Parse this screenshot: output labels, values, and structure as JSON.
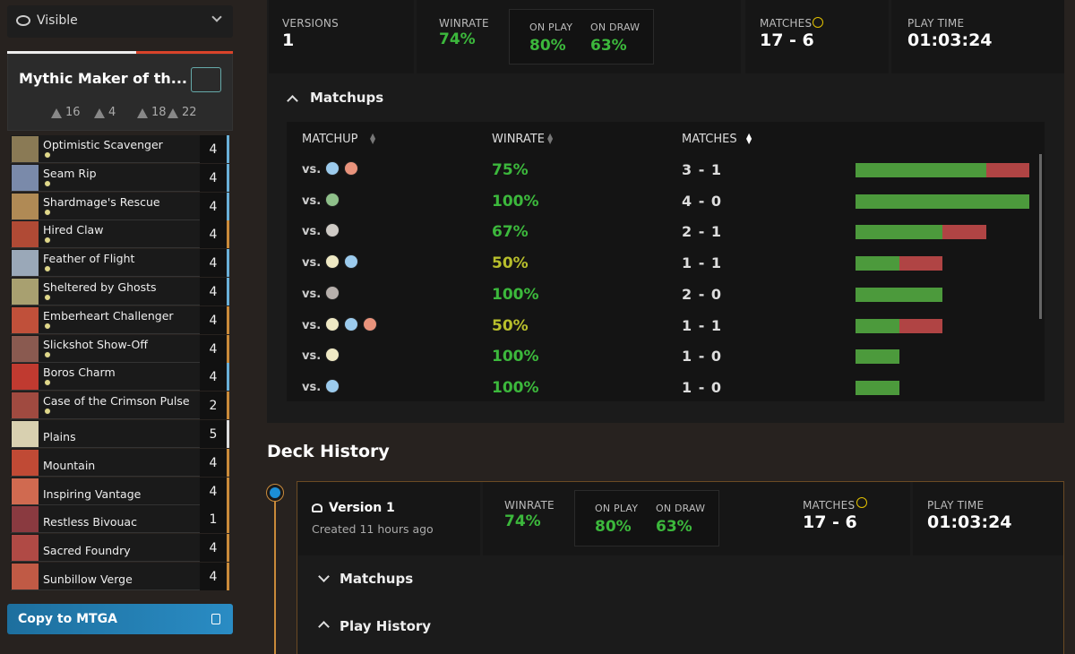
{
  "sidebar": {
    "visibility": "Visible",
    "deck_name": "Mythic Maker of th...",
    "type_counts": [
      16,
      4,
      18,
      22
    ],
    "cards": [
      {
        "name": "Optimistic Scavenger",
        "count": 4
      },
      {
        "name": "Seam Rip",
        "count": 4
      },
      {
        "name": "Shardmage's Rescue",
        "count": 4
      },
      {
        "name": "Hired Claw",
        "count": 4
      },
      {
        "name": "Feather of Flight",
        "count": 4
      },
      {
        "name": "Sheltered by Ghosts",
        "count": 4
      },
      {
        "name": "Emberheart Challenger",
        "count": 4
      },
      {
        "name": "Slickshot Show-Off",
        "count": 4
      },
      {
        "name": "Boros Charm",
        "count": 4
      },
      {
        "name": "Case of the Crimson Pulse",
        "count": 2
      },
      {
        "name": "Plains",
        "count": 5
      },
      {
        "name": "Mountain",
        "count": 4
      },
      {
        "name": "Inspiring Vantage",
        "count": 4
      },
      {
        "name": "Restless Bivouac",
        "count": 1
      },
      {
        "name": "Sacred Foundry",
        "count": 4
      },
      {
        "name": "Sunbillow Verge",
        "count": 4
      }
    ],
    "copy_button": "Copy to MTGA"
  },
  "summary": {
    "versions_label": "VERSIONS",
    "versions": 1,
    "winrate_label": "WINRATE",
    "winrate": "74%",
    "on_play_label": "ON PLAY",
    "on_play": "80%",
    "on_draw_label": "ON DRAW",
    "on_draw": "63%",
    "matches_label": "MATCHES",
    "matches": "17 - 6",
    "play_time_label": "PLAY TIME",
    "play_time": "01:03:24"
  },
  "matchups": {
    "title": "Matchups",
    "headers": [
      "MATCHUP",
      "WINRATE",
      "MATCHES"
    ],
    "rows": [
      {
        "prefix": "vs.",
        "winrate": "75%",
        "record": "3 - 1"
      },
      {
        "prefix": "vs.",
        "winrate": "100%",
        "record": "4 - 0"
      },
      {
        "prefix": "vs.",
        "winrate": "67%",
        "record": "2 - 1"
      },
      {
        "prefix": "vs.",
        "winrate": "50%",
        "record": "1 - 1"
      },
      {
        "prefix": "vs.",
        "winrate": "100%",
        "record": "2 - 0"
      },
      {
        "prefix": "vs.",
        "winrate": "50%",
        "record": "1 - 1"
      },
      {
        "prefix": "vs.",
        "winrate": "100%",
        "record": "1 - 0"
      },
      {
        "prefix": "vs.",
        "winrate": "100%",
        "record": "1 - 0"
      }
    ]
  },
  "history": {
    "title": "Deck History",
    "version": "Version 1",
    "created": "Created 11 hours ago",
    "winrate_label": "WINRATE",
    "winrate": "74%",
    "on_play_label": "ON PLAY",
    "on_play": "80%",
    "on_draw_label": "ON DRAW",
    "on_draw": "63%",
    "matches_label": "MATCHES",
    "matches": "17 - 6",
    "play_time_label": "PLAY TIME",
    "play_time": "01:03:24",
    "matchups": "Matchups",
    "play_history": "Play History"
  }
}
